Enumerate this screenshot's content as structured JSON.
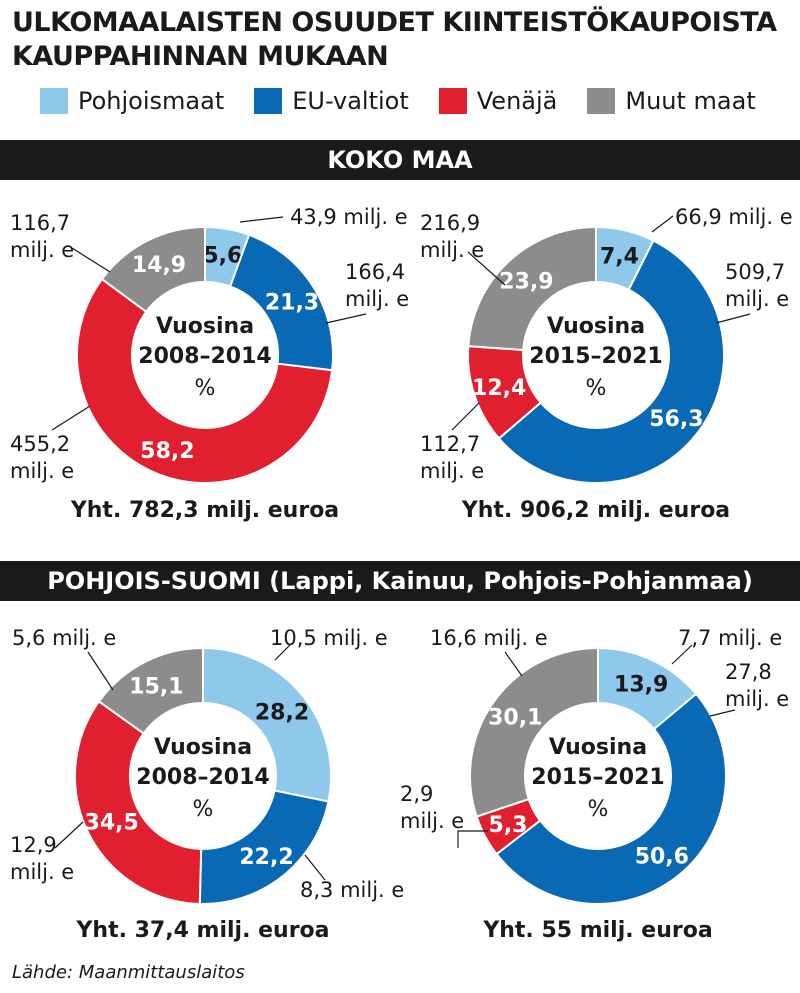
{
  "title": {
    "line1": "ULKOMAALAISTEN OSUUDET KIINTEISTÖKAUPOISTA",
    "line2": "KAUPPAHINNAN MUKAAN"
  },
  "legend": [
    {
      "label": "Pohjoismaat",
      "color": "#8ec8ea"
    },
    {
      "label": "EU-valtiot",
      "color": "#0a69b5"
    },
    {
      "label": "Venäjä",
      "color": "#e0202e"
    },
    {
      "label": "Muut maat",
      "color": "#8c8c8c"
    }
  ],
  "sections": {
    "koko_maa": "KOKO MAA",
    "pohjois_suomi": "POHJOIS-SUOMI  (Lappi, Kainuu, Pohjois-Pohjanmaa)"
  },
  "center_label": {
    "line1": "Vuosina",
    "percent": "%"
  },
  "chart_data": [
    {
      "type": "pie",
      "section": "KOKO MAA",
      "period": "2008–2014",
      "categories": [
        "Pohjoismaat",
        "EU-valtiot",
        "Venäjä",
        "Muut maat"
      ],
      "values": [
        5.6,
        21.3,
        58.2,
        14.9
      ],
      "value_labels": [
        "5,6",
        "21,3",
        "58,2",
        "14,9"
      ],
      "amounts": [
        "43,9 milj. e",
        "166,4\nmilj. e",
        "455,2\nmilj. e",
        "116,7\nmilj. e"
      ],
      "total": "Yht. 782,3 milj. euroa"
    },
    {
      "type": "pie",
      "section": "KOKO MAA",
      "period": "2015–2021",
      "categories": [
        "Pohjoismaat",
        "EU-valtiot",
        "Venäjä",
        "Muut maat"
      ],
      "values": [
        7.4,
        56.3,
        12.4,
        23.9
      ],
      "value_labels": [
        "7,4",
        "56,3",
        "12,4",
        "23,9"
      ],
      "amounts": [
        "66,9 milj. e",
        "509,7\nmilj. e",
        "112,7\nmilj. e",
        "216,9\nmilj. e"
      ],
      "total": "Yht. 906,2 milj. euroa"
    },
    {
      "type": "pie",
      "section": "POHJOIS-SUOMI",
      "period": "2008–2014",
      "categories": [
        "Pohjoismaat",
        "EU-valtiot",
        "Venäjä",
        "Muut maat"
      ],
      "values": [
        28.2,
        22.2,
        34.5,
        15.1
      ],
      "value_labels": [
        "28,2",
        "22,2",
        "34,5",
        "15,1"
      ],
      "amounts": [
        "10,5 milj. e",
        "8,3 milj. e",
        "12,9\nmilj. e",
        "5,6 milj. e"
      ],
      "total": "Yht. 37,4 milj. euroa"
    },
    {
      "type": "pie",
      "section": "POHJOIS-SUOMI",
      "period": "2015–2021",
      "categories": [
        "Pohjoismaat",
        "EU-valtiot",
        "Venäjä",
        "Muut maat"
      ],
      "values": [
        13.9,
        50.6,
        5.3,
        30.1
      ],
      "value_labels": [
        "13,9",
        "50,6",
        "5,3",
        "30,1"
      ],
      "amounts": [
        "7,7 milj. e",
        "27,8\nmilj. e",
        "2,9\nmilj. e",
        "16,6 milj. e"
      ],
      "total": "Yht. 55 milj. euroa"
    }
  ],
  "source": "Lähde: Maanmittauslaitos"
}
